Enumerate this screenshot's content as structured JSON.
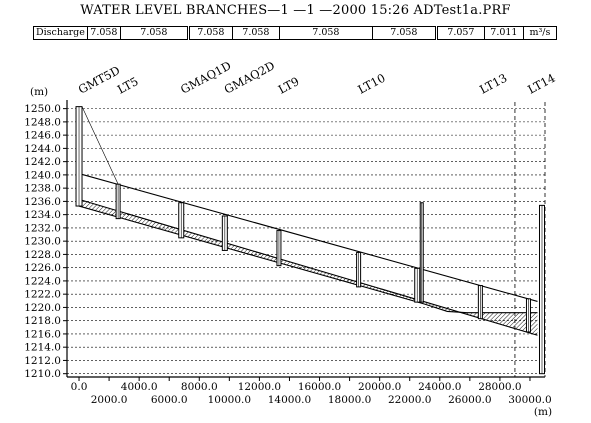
{
  "title": "WATER LEVEL BRANCHES—1 —1 —2000 15:26 ADTest1a.PRF",
  "discharge": {
    "label": "Discharge",
    "values": [
      "7.058",
      "7.058",
      "7.058",
      "7.058",
      "7.058",
      "7.058",
      "7.057",
      "7.011"
    ],
    "unit": "m³/s"
  },
  "chart_data": {
    "type": "line",
    "ylabel": "(m)",
    "xlabel": "(m)",
    "xlim": [
      -800,
      31000
    ],
    "ylim": [
      1209.5,
      1251
    ],
    "y_ticks": [
      1210,
      1212,
      1214,
      1216,
      1218,
      1220,
      1222,
      1224,
      1226,
      1228,
      1230,
      1232,
      1234,
      1236,
      1238,
      1240,
      1242,
      1244,
      1246,
      1248,
      1250
    ],
    "y_tick_labels": [
      "1210.0",
      "1212.0",
      "1214.0",
      "1216.0",
      "1218.0",
      "1220.0",
      "1222.0",
      "1224.0",
      "1226.0",
      "1228.0",
      "1230.0",
      "1232.0",
      "1234.0",
      "1236.0",
      "1238.0",
      "1240.0",
      "1242.0",
      "1244.0",
      "1246.0",
      "1248.0",
      "1250.0"
    ],
    "x_ticks_top": [
      0,
      4000,
      8000,
      12000,
      16000,
      20000,
      24000,
      28000
    ],
    "x_tick_labels_top": [
      "0.0",
      "4000.0",
      "8000.0",
      "12000.0",
      "16000.0",
      "20000.0",
      "24000.0",
      "28000.0"
    ],
    "x_ticks_bottom": [
      2000,
      6000,
      10000,
      14000,
      18000,
      22000,
      26000,
      30000
    ],
    "x_tick_labels_bottom": [
      "2000.0",
      "6000.0",
      "10000.0",
      "14000.0",
      "18000.0",
      "22000.0",
      "26000.0",
      "30000.0"
    ],
    "grid_y": true,
    "grid_x": "dashed",
    "series": [
      {
        "x": [
          0,
          30500
        ],
        "y": [
          1240.2,
          1220.9
        ]
      },
      {
        "x": [
          0,
          30500
        ],
        "y": [
          1236.3,
          1215.8
        ]
      },
      {
        "x": [
          0,
          23000,
          24500,
          25800,
          30500
        ],
        "y": [
          1235.3,
          1220.5,
          1219.4,
          1219.2,
          1219.2
        ]
      }
    ],
    "stations": [
      {
        "label": "GMT5D",
        "x": 0,
        "top": 1250.3,
        "bottom": 1235.3,
        "width": 6
      },
      {
        "label": "LT5",
        "x": 2600,
        "top": 1238.6,
        "bottom": 1233.4,
        "width": 4
      },
      {
        "label": "GMAQ1D",
        "x": 6800,
        "top": 1235.8,
        "bottom": 1230.5,
        "width": 5
      },
      {
        "label": "GMAQ2D",
        "x": 9700,
        "top": 1233.8,
        "bottom": 1228.6,
        "width": 5
      },
      {
        "label": "LT9",
        "x": 13300,
        "top": 1231.6,
        "bottom": 1226.3,
        "width": 4
      },
      {
        "label": "LT10",
        "x": 18600,
        "top": 1228.3,
        "bottom": 1223.1,
        "width": 4
      },
      {
        "label": "",
        "x": 22500,
        "top": 1225.9,
        "bottom": 1220.8,
        "width": 5
      },
      {
        "label": "",
        "x": 22800,
        "top": 1235.8,
        "bottom": 1220.8,
        "width": 3
      },
      {
        "label": "LT13",
        "x": 26700,
        "top": 1223.3,
        "bottom": 1218.3,
        "width": 4
      },
      {
        "label": "LT14",
        "x": 29900,
        "top": 1221.3,
        "bottom": 1216.3,
        "width": 4
      },
      {
        "label": "",
        "x": 30800,
        "top": 1235.4,
        "bottom": 1210.0,
        "width": 5
      }
    ],
    "dashed_x": [
      29000,
      31000
    ]
  }
}
